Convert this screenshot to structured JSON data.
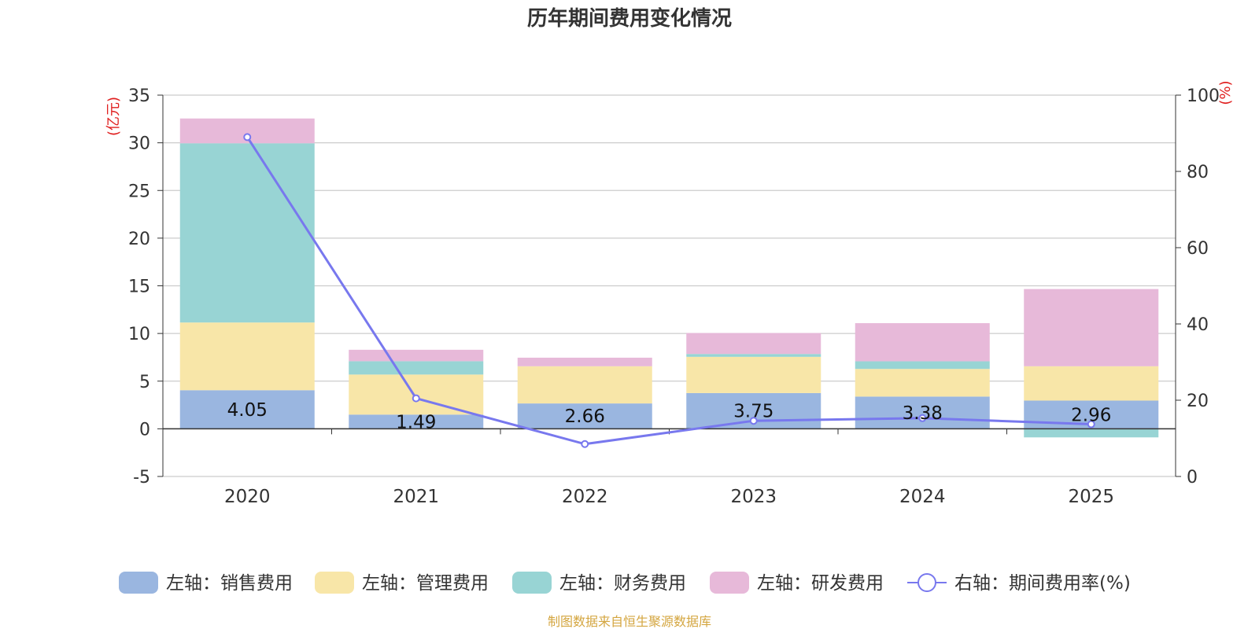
{
  "chart_data": {
    "type": "bar",
    "title": "历年期间费用变化情况",
    "categories": [
      "2020",
      "2021",
      "2022",
      "2023",
      "2024",
      "2025"
    ],
    "left_axis": {
      "unit_label": "(亿元)",
      "ylim": [
        -5,
        35
      ],
      "ticks": [
        35,
        30,
        25,
        20,
        15,
        10,
        5,
        0,
        -5
      ]
    },
    "right_axis": {
      "unit_label": "(%)",
      "ylim": [
        0,
        100
      ],
      "ticks": [
        100,
        80,
        60,
        40,
        20,
        0
      ]
    },
    "series": [
      {
        "name": "左轴：销售费用",
        "type": "bar",
        "color": "#9ab6e0",
        "values": [
          4.05,
          1.49,
          2.66,
          3.75,
          3.38,
          2.96
        ]
      },
      {
        "name": "左轴：管理费用",
        "type": "bar",
        "color": "#f8e6a8",
        "values": [
          7.1,
          4.2,
          3.9,
          3.8,
          2.9,
          3.6
        ]
      },
      {
        "name": "左轴：财务费用",
        "type": "bar",
        "color": "#98d4d4",
        "values": [
          18.8,
          1.4,
          0.0,
          0.3,
          0.8,
          -0.9
        ]
      },
      {
        "name": "左轴：研发费用",
        "type": "bar",
        "color": "#e7b9d9",
        "values": [
          2.6,
          1.2,
          0.9,
          2.2,
          4.0,
          8.1
        ]
      },
      {
        "name": "右轴：期间费用率(%)",
        "type": "line",
        "color": "#7878ee",
        "values": [
          89.0,
          20.5,
          8.5,
          14.6,
          15.3,
          13.7
        ]
      }
    ],
    "data_labels": [
      "4.05",
      "1.49",
      "2.66",
      "3.75",
      "3.38",
      "2.96"
    ]
  },
  "footer": {
    "source": "制图数据来自恒生聚源数据库"
  }
}
